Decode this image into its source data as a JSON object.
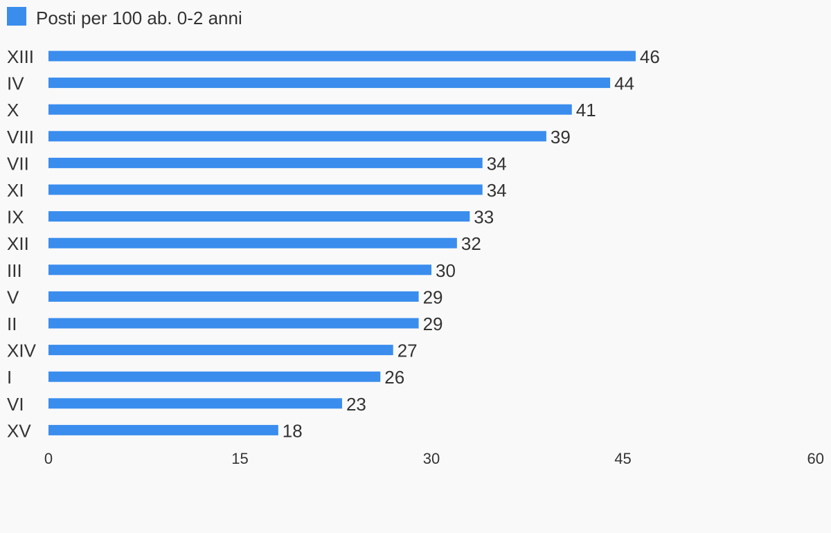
{
  "chart_data": {
    "type": "bar",
    "orientation": "horizontal",
    "categories": [
      "XIII",
      "IV",
      "X",
      "VIII",
      "VII",
      "XI",
      "IX",
      "XII",
      "III",
      "V",
      "II",
      "XIV",
      "I",
      "VI",
      "XV"
    ],
    "series": [
      {
        "name": "Posti per 100 ab. 0-2 anni",
        "values": [
          46,
          44,
          41,
          39,
          34,
          34,
          33,
          32,
          30,
          29,
          29,
          27,
          26,
          23,
          18
        ],
        "color": "#3a8ded"
      }
    ],
    "xlim": [
      0,
      60
    ],
    "xticks": [
      "0",
      "15",
      "30",
      "45",
      "60"
    ],
    "legend_position": "top-left",
    "grid": false,
    "data_labels": true
  }
}
